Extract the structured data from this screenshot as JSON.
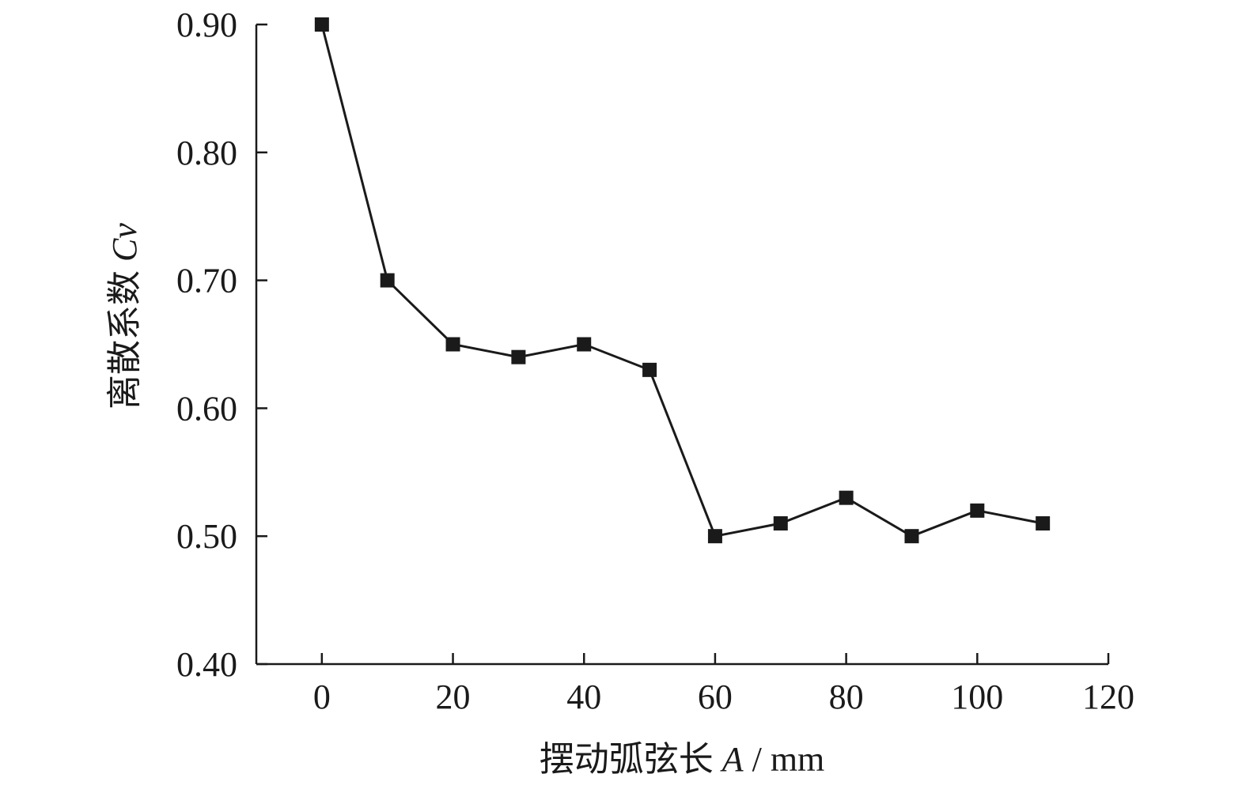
{
  "chart_data": {
    "type": "line",
    "xlabel": {
      "prefix": "摆动弧弦长 ",
      "var": "A",
      "suffix": " / mm"
    },
    "ylabel": {
      "prefix": "离散系数 ",
      "var": "Cv"
    },
    "xlim": [
      -10,
      120
    ],
    "ylim": [
      0.4,
      0.9
    ],
    "xticks": [
      0,
      20,
      40,
      60,
      80,
      100,
      120
    ],
    "yticks": [
      0.4,
      0.5,
      0.6,
      0.7,
      0.8,
      0.9
    ],
    "xtick_labels": [
      "0",
      "20",
      "40",
      "60",
      "80",
      "100",
      "120"
    ],
    "ytick_labels": [
      "0.40",
      "0.50",
      "0.60",
      "0.70",
      "0.80",
      "0.90"
    ],
    "grid": false,
    "series": [
      {
        "marker": "square",
        "color": "#1a1a1a",
        "x": [
          0,
          10,
          20,
          30,
          40,
          50,
          60,
          70,
          80,
          90,
          100,
          110
        ],
        "y": [
          0.9,
          0.7,
          0.65,
          0.64,
          0.65,
          0.63,
          0.5,
          0.51,
          0.53,
          0.5,
          0.52,
          0.51
        ]
      }
    ]
  }
}
